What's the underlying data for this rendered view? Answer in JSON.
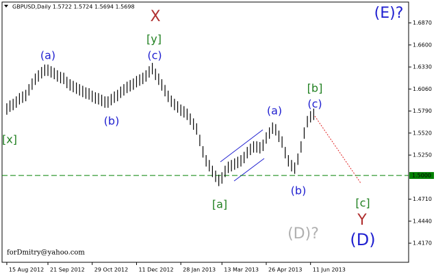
{
  "chart_data": {
    "type": "ohlc",
    "header": "GBPUSD,Daily  1.5722 1.5724 1.5694 1.5698",
    "footer": "forDmitry@yahoo.com",
    "color": "#000000",
    "high": [
      1.5885,
      1.592,
      1.594,
      1.597,
      1.601,
      1.603,
      1.605,
      1.612,
      1.619,
      1.625,
      1.629,
      1.633,
      1.636,
      1.636,
      1.634,
      1.632,
      1.629,
      1.627,
      1.626,
      1.621,
      1.618,
      1.616,
      1.614,
      1.612,
      1.61,
      1.608,
      1.607,
      1.604,
      1.602,
      1.601,
      1.599,
      1.597,
      1.597,
      1.6,
      1.603,
      1.605,
      1.609,
      1.612,
      1.615,
      1.617,
      1.619,
      1.622,
      1.624,
      1.626,
      1.629,
      1.634,
      1.638,
      1.631,
      1.625,
      1.618,
      1.611,
      1.604,
      1.598,
      1.594,
      1.591,
      1.587,
      1.585,
      1.582,
      1.576,
      1.57,
      1.564,
      1.55,
      1.536,
      1.525,
      1.519,
      1.512,
      1.506,
      1.501,
      1.504,
      1.512,
      1.517,
      1.519,
      1.521,
      1.523,
      1.525,
      1.529,
      1.535,
      1.539,
      1.542,
      1.542,
      1.541,
      1.544,
      1.553,
      1.559,
      1.565,
      1.563,
      1.555,
      1.548,
      1.535,
      1.525,
      1.519,
      1.516,
      1.527,
      1.542,
      1.559,
      1.573,
      1.579,
      1.582
    ],
    "low": [
      1.5745,
      1.578,
      1.58,
      1.583,
      1.587,
      1.589,
      1.591,
      1.598,
      1.605,
      1.611,
      1.615,
      1.619,
      1.622,
      1.622,
      1.62,
      1.618,
      1.615,
      1.613,
      1.612,
      1.607,
      1.604,
      1.602,
      1.6,
      1.598,
      1.596,
      1.594,
      1.593,
      1.59,
      1.588,
      1.587,
      1.585,
      1.583,
      1.583,
      1.586,
      1.589,
      1.591,
      1.595,
      1.598,
      1.601,
      1.603,
      1.605,
      1.608,
      1.61,
      1.612,
      1.615,
      1.62,
      1.624,
      1.617,
      1.611,
      1.604,
      1.597,
      1.59,
      1.584,
      1.58,
      1.577,
      1.573,
      1.571,
      1.568,
      1.562,
      1.556,
      1.55,
      1.536,
      1.522,
      1.511,
      1.505,
      1.498,
      1.492,
      1.487,
      1.49,
      1.498,
      1.503,
      1.505,
      1.507,
      1.509,
      1.511,
      1.515,
      1.521,
      1.525,
      1.528,
      1.528,
      1.527,
      1.53,
      1.539,
      1.545,
      1.551,
      1.549,
      1.541,
      1.534,
      1.521,
      1.511,
      1.505,
      1.502,
      1.513,
      1.528,
      1.545,
      1.559,
      1.565,
      1.568
    ],
    "xlim": [
      -1.5,
      127
    ],
    "xticks": [
      {
        "value": 0,
        "label": "15 Aug 2012"
      },
      {
        "value": 13,
        "label": "21 Sep 2012"
      },
      {
        "value": 27,
        "label": "29 Oct 2012"
      },
      {
        "value": 41,
        "label": "11 Dec 2012"
      },
      {
        "value": 55,
        "label": "28 Jan 2013"
      },
      {
        "value": 68,
        "label": "13 Mar 2013"
      },
      {
        "value": 82,
        "label": "26 Apr 2013"
      },
      {
        "value": 96,
        "label": "11 Jun 2013"
      }
    ],
    "ylim": [
      1.3936,
      1.7126
    ],
    "yticks": [
      {
        "value": 1.687,
        "label": "1.6870"
      },
      {
        "value": 1.66,
        "label": "1.6600"
      },
      {
        "value": 1.633,
        "label": "1.6330"
      },
      {
        "value": 1.606,
        "label": "1.6060"
      },
      {
        "value": 1.579,
        "label": "1.5790"
      },
      {
        "value": 1.552,
        "label": "1.5520"
      },
      {
        "value": 1.525,
        "label": "1.5250"
      },
      {
        "value": 1.471,
        "label": "1.4710"
      },
      {
        "value": 1.444,
        "label": "1.4440"
      },
      {
        "value": 1.417,
        "label": "1.4170"
      }
    ],
    "level": {
      "value": 1.5,
      "label": "1.5000",
      "color": "#008000"
    },
    "annotations": [
      {
        "text": "X",
        "color": "#b03030"
      },
      {
        "text": "[y]",
        "color": "#208020"
      },
      {
        "text": "(c)",
        "color": "#2020d0"
      },
      {
        "text": "(a)",
        "color": "#2020d0"
      },
      {
        "text": "(b)",
        "color": "#2020d0"
      },
      {
        "text": "[x]",
        "color": "#208020"
      },
      {
        "text": "[a]",
        "color": "#208020"
      },
      {
        "text": "(a)",
        "color": "#2020d0"
      },
      {
        "text": "[b]",
        "color": "#208020"
      },
      {
        "text": "(c)",
        "color": "#2020d0"
      },
      {
        "text": "(b)",
        "color": "#2020d0"
      },
      {
        "text": "[c]",
        "color": "#208020"
      },
      {
        "text": "Y",
        "color": "#b03030"
      },
      {
        "text": "(D)?",
        "color": "#b0b0b0"
      },
      {
        "text": "(D)",
        "color": "#2020d0"
      },
      {
        "text": "(E)?",
        "color": "#2020d0"
      }
    ]
  }
}
